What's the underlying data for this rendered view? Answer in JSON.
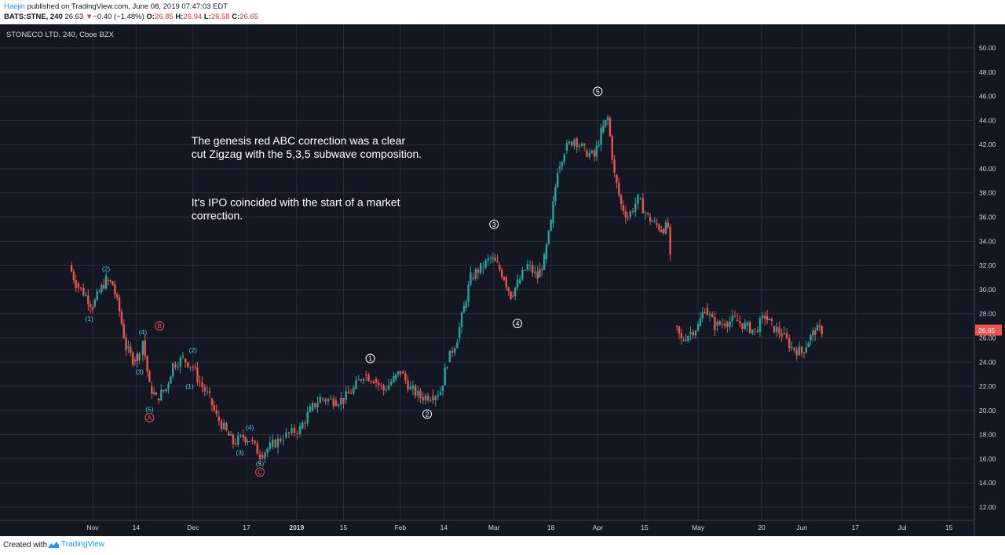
{
  "header": {
    "author": "Haejin",
    "published": " published on TradingView.com, June 08, 2019 07:47:03 EDT",
    "symbol": "BATS:STNE, 240",
    "last": "26.63",
    "change_arrow": "▼",
    "change": "−0.40 (−1.48%)",
    "o_label": "O:",
    "o_val": "26.85",
    "h_label": "H:",
    "h_val": "26.94",
    "l_label": "L:",
    "l_val": "26.58",
    "c_label": "C:",
    "c_val": "26.65"
  },
  "footer": {
    "created": "Created with",
    "brand": "TradingView",
    "brand_icon": "tradingview-logo-icon"
  },
  "colors": {
    "background": "#131722",
    "grid": "#2a2e39",
    "up": "#26a69a",
    "down": "#ef5350",
    "axis_text": "#d1d4dc",
    "wave_cyan": "#4dd0e1",
    "wave_red": "#ef5350",
    "wave_white": "#ffffff",
    "price_tag": "#ef5350"
  },
  "chart_data": {
    "type": "candlestick",
    "title": "STONECO LTD, 240, Cboe BZX",
    "ylim": [
      11,
      52
    ],
    "y_ticks": [
      "12.00",
      "14.00",
      "16.00",
      "18.00",
      "20.00",
      "22.00",
      "24.00",
      "26.00",
      "28.00",
      "30.00",
      "32.00",
      "34.00",
      "36.00",
      "38.00",
      "40.00",
      "42.00",
      "44.00",
      "46.00",
      "48.00",
      "50.00"
    ],
    "x_ticks": [
      {
        "label": "Nov",
        "date": "2018-11-01"
      },
      {
        "label": "14",
        "date": "2018-11-14"
      },
      {
        "label": "Dec",
        "date": "2018-12-01"
      },
      {
        "label": "17",
        "date": "2018-12-17"
      },
      {
        "label": "2019",
        "date": "2019-01-01"
      },
      {
        "label": "15",
        "date": "2019-01-15"
      },
      {
        "label": "Feb",
        "date": "2019-02-01"
      },
      {
        "label": "14",
        "date": "2019-02-14"
      },
      {
        "label": "Mar",
        "date": "2019-03-01"
      },
      {
        "label": "18",
        "date": "2019-03-18"
      },
      {
        "label": "Apr",
        "date": "2019-04-01"
      },
      {
        "label": "15",
        "date": "2019-04-15"
      },
      {
        "label": "May",
        "date": "2019-05-01"
      },
      {
        "label": "20",
        "date": "2019-05-20"
      },
      {
        "label": "Jun",
        "date": "2019-06-01"
      },
      {
        "label": "17",
        "date": "2019-06-17"
      },
      {
        "label": "Jul",
        "date": "2019-07-01"
      },
      {
        "label": "15",
        "date": "2019-07-15"
      }
    ],
    "last_price": "26.65",
    "price_path": [
      [
        "2018-10-25",
        32.0
      ],
      [
        "2018-10-27",
        30.5
      ],
      [
        "2018-10-30",
        29.5
      ],
      [
        "2018-11-01",
        28.6
      ],
      [
        "2018-11-03",
        29.8
      ],
      [
        "2018-11-05",
        30.8
      ],
      [
        "2018-11-07",
        30.4
      ],
      [
        "2018-11-09",
        28.2
      ],
      [
        "2018-11-11",
        25.2
      ],
      [
        "2018-11-13",
        24.2
      ],
      [
        "2018-11-15",
        24.6
      ],
      [
        "2018-11-16",
        25.8
      ],
      [
        "2018-11-18",
        22.0
      ],
      [
        "2018-11-20",
        21.0
      ],
      [
        "2018-11-23",
        21.8
      ],
      [
        "2018-11-25",
        23.8
      ],
      [
        "2018-11-28",
        24.3
      ],
      [
        "2018-12-01",
        23.6
      ],
      [
        "2018-12-03",
        22.3
      ],
      [
        "2018-12-06",
        21.0
      ],
      [
        "2018-12-08",
        19.5
      ],
      [
        "2018-12-11",
        18.2
      ],
      [
        "2018-12-13",
        17.3
      ],
      [
        "2018-12-16",
        17.8
      ],
      [
        "2018-12-18",
        17.6
      ],
      [
        "2018-12-21",
        16.3
      ],
      [
        "2018-12-24",
        17.0
      ],
      [
        "2018-12-28",
        17.8
      ],
      [
        "2019-01-02",
        18.5
      ],
      [
        "2019-01-05",
        20.0
      ],
      [
        "2019-01-08",
        21.0
      ],
      [
        "2019-01-12",
        20.8
      ],
      [
        "2019-01-15",
        20.9
      ],
      [
        "2019-01-18",
        21.8
      ],
      [
        "2019-01-21",
        23.0
      ],
      [
        "2019-01-24",
        22.6
      ],
      [
        "2019-01-27",
        21.7
      ],
      [
        "2019-01-30",
        22.6
      ],
      [
        "2019-02-01",
        23.2
      ],
      [
        "2019-02-04",
        21.8
      ],
      [
        "2019-02-07",
        21.1
      ],
      [
        "2019-02-10",
        21.2
      ],
      [
        "2019-02-13",
        21.6
      ],
      [
        "2019-02-15",
        24.0
      ],
      [
        "2019-02-18",
        26.0
      ],
      [
        "2019-02-20",
        28.5
      ],
      [
        "2019-02-22",
        31.0
      ],
      [
        "2019-02-25",
        31.8
      ],
      [
        "2019-02-28",
        32.6
      ],
      [
        "2019-03-02",
        32.0
      ],
      [
        "2019-03-04",
        31.0
      ],
      [
        "2019-03-06",
        29.5
      ],
      [
        "2019-03-08",
        30.5
      ],
      [
        "2019-03-11",
        32.0
      ],
      [
        "2019-03-14",
        31.0
      ],
      [
        "2019-03-16",
        32.5
      ],
      [
        "2019-03-18",
        35.5
      ],
      [
        "2019-03-20",
        40.0
      ],
      [
        "2019-03-22",
        41.5
      ],
      [
        "2019-03-25",
        42.5
      ],
      [
        "2019-03-28",
        41.5
      ],
      [
        "2019-03-31",
        41.0
      ],
      [
        "2019-04-02",
        43.0
      ],
      [
        "2019-04-04",
        44.2
      ],
      [
        "2019-04-06",
        39.5
      ],
      [
        "2019-04-08",
        37.0
      ],
      [
        "2019-04-10",
        36.0
      ],
      [
        "2019-04-13",
        37.5
      ],
      [
        "2019-04-16",
        36.0
      ],
      [
        "2019-04-18",
        35.5
      ],
      [
        "2019-04-20",
        35.0
      ],
      [
        "2019-04-22",
        35.2
      ],
      [
        "2019-04-24",
        27.0
      ],
      [
        "2019-04-26",
        25.8
      ],
      [
        "2019-04-28",
        26.3
      ],
      [
        "2019-05-01",
        27.0
      ],
      [
        "2019-05-03",
        28.5
      ],
      [
        "2019-05-06",
        27.0
      ],
      [
        "2019-05-09",
        27.3
      ],
      [
        "2019-05-12",
        27.5
      ],
      [
        "2019-05-15",
        27.0
      ],
      [
        "2019-05-18",
        26.6
      ],
      [
        "2019-05-21",
        27.8
      ],
      [
        "2019-05-23",
        27.0
      ],
      [
        "2019-05-26",
        26.3
      ],
      [
        "2019-05-29",
        25.2
      ],
      [
        "2019-06-01",
        24.8
      ],
      [
        "2019-06-03",
        25.8
      ],
      [
        "2019-06-05",
        26.6
      ],
      [
        "2019-06-07",
        26.65
      ]
    ],
    "annotations": [
      {
        "text": "The genesis red ABC correction was a clear",
        "date": "2018-12-01",
        "price": 42.0,
        "size": 14,
        "color": "#ffffff"
      },
      {
        "text": "cut Zigzag with the 5,3,5 subwave composition.",
        "date": "2018-12-01",
        "price": 40.9,
        "size": 14,
        "color": "#ffffff"
      },
      {
        "text": "It's IPO coincided with the start of a market",
        "date": "2018-12-01",
        "price": 36.9,
        "size": 14,
        "color": "#ffffff"
      },
      {
        "text": "correction.",
        "date": "2018-12-01",
        "price": 35.8,
        "size": 14,
        "color": "#ffffff"
      }
    ],
    "wave_labels": [
      {
        "text": "(1)",
        "date": "2018-10-31",
        "price": 27.6,
        "color": "cyan",
        "circle": false
      },
      {
        "text": "(2)",
        "date": "2018-11-05",
        "price": 31.7,
        "color": "cyan",
        "circle": false
      },
      {
        "text": "(3)",
        "date": "2018-11-15",
        "price": 23.2,
        "color": "cyan",
        "circle": false
      },
      {
        "text": "(4)",
        "date": "2018-11-16",
        "price": 26.5,
        "color": "cyan",
        "circle": false
      },
      {
        "text": "(5)",
        "date": "2018-11-18",
        "price": 20.1,
        "color": "cyan",
        "circle": false
      },
      {
        "text": "A",
        "date": "2018-11-18",
        "price": 19.4,
        "color": "red",
        "circle": true
      },
      {
        "text": "B",
        "date": "2018-11-21",
        "price": 27.0,
        "color": "red",
        "circle": true
      },
      {
        "text": "(1)",
        "date": "2018-11-30",
        "price": 22.0,
        "color": "cyan",
        "circle": false
      },
      {
        "text": "(2)",
        "date": "2018-12-01",
        "price": 25.0,
        "color": "cyan",
        "circle": false
      },
      {
        "text": "(3)",
        "date": "2018-12-15",
        "price": 16.5,
        "color": "cyan",
        "circle": false
      },
      {
        "text": "(4)",
        "date": "2018-12-18",
        "price": 18.6,
        "color": "cyan",
        "circle": false
      },
      {
        "text": "(5)",
        "date": "2018-12-21",
        "price": 15.6,
        "color": "cyan",
        "circle": false
      },
      {
        "text": "C",
        "date": "2018-12-21",
        "price": 14.9,
        "color": "red",
        "circle": true
      },
      {
        "text": "1",
        "date": "2019-01-23",
        "price": 24.3,
        "color": "white",
        "circle": true
      },
      {
        "text": "2",
        "date": "2019-02-09",
        "price": 19.7,
        "color": "white",
        "circle": true
      },
      {
        "text": "3",
        "date": "2019-03-01",
        "price": 35.4,
        "color": "white",
        "circle": true
      },
      {
        "text": "4",
        "date": "2019-03-08",
        "price": 27.2,
        "color": "white",
        "circle": true
      },
      {
        "text": "5",
        "date": "2019-04-01",
        "price": 46.4,
        "color": "white",
        "circle": true
      }
    ]
  }
}
